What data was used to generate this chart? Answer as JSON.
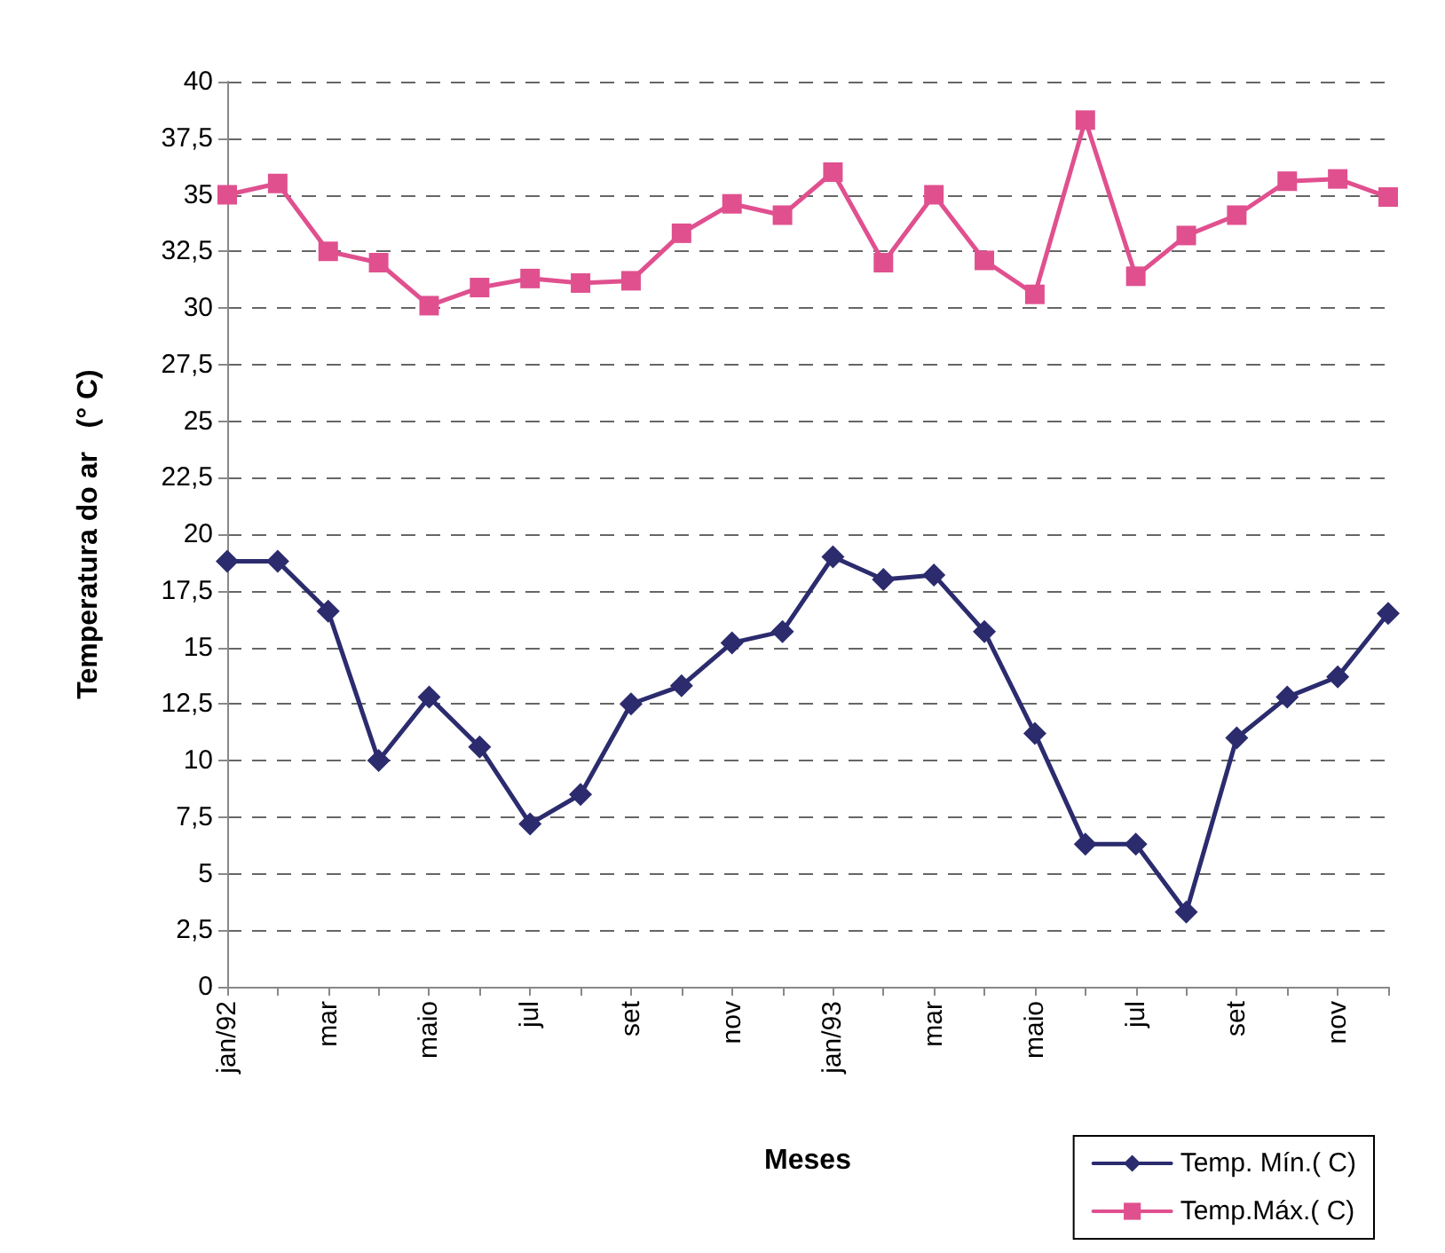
{
  "chart_data": {
    "type": "line",
    "xlabel": "Meses",
    "ylabel": "Temperatura do ar   (° C)",
    "categories": [
      "jan/92",
      null,
      "mar",
      null,
      "maio",
      null,
      "jul",
      null,
      "set",
      null,
      "nov",
      null,
      "jan/93",
      null,
      "mar",
      null,
      "maio",
      null,
      "jul",
      null,
      "set",
      null,
      "nov",
      null
    ],
    "series": [
      {
        "name": "Temp. Mín.( C)",
        "color": "#2b2b6e",
        "marker": "diamond",
        "values": [
          18.8,
          18.8,
          16.6,
          10.0,
          12.8,
          10.6,
          7.2,
          8.5,
          12.5,
          13.3,
          15.2,
          15.7,
          19.0,
          18.0,
          18.2,
          15.7,
          11.2,
          6.3,
          6.3,
          3.3,
          11.0,
          12.8,
          13.7,
          16.5
        ]
      },
      {
        "name": "Temp.Máx.( C)",
        "color": "#e0508f",
        "marker": "square",
        "values": [
          35.0,
          35.5,
          32.5,
          32.0,
          30.1,
          30.9,
          31.3,
          31.1,
          31.2,
          33.3,
          34.6,
          34.1,
          36.0,
          32.0,
          35.0,
          32.1,
          30.6,
          38.3,
          31.4,
          33.2,
          34.1,
          35.6,
          35.7,
          34.9
        ]
      }
    ],
    "ylim": [
      0,
      40
    ],
    "yticks": [
      0,
      {
        "value": 2.5,
        "label": "2,5"
      },
      5,
      {
        "value": 7.5,
        "label": "7,5"
      },
      10,
      {
        "value": 12.5,
        "label": "12,5"
      },
      15,
      {
        "value": 17.5,
        "label": "17,5"
      },
      20,
      {
        "value": 22.5,
        "label": "22,5"
      },
      25,
      {
        "value": 27.5,
        "label": "27,5"
      },
      30,
      {
        "value": 32.5,
        "label": "32,5"
      },
      35,
      {
        "value": 37.5,
        "label": "37,5"
      },
      40
    ],
    "grid": "y",
    "line_style": "solid",
    "legend": "bottom right"
  }
}
